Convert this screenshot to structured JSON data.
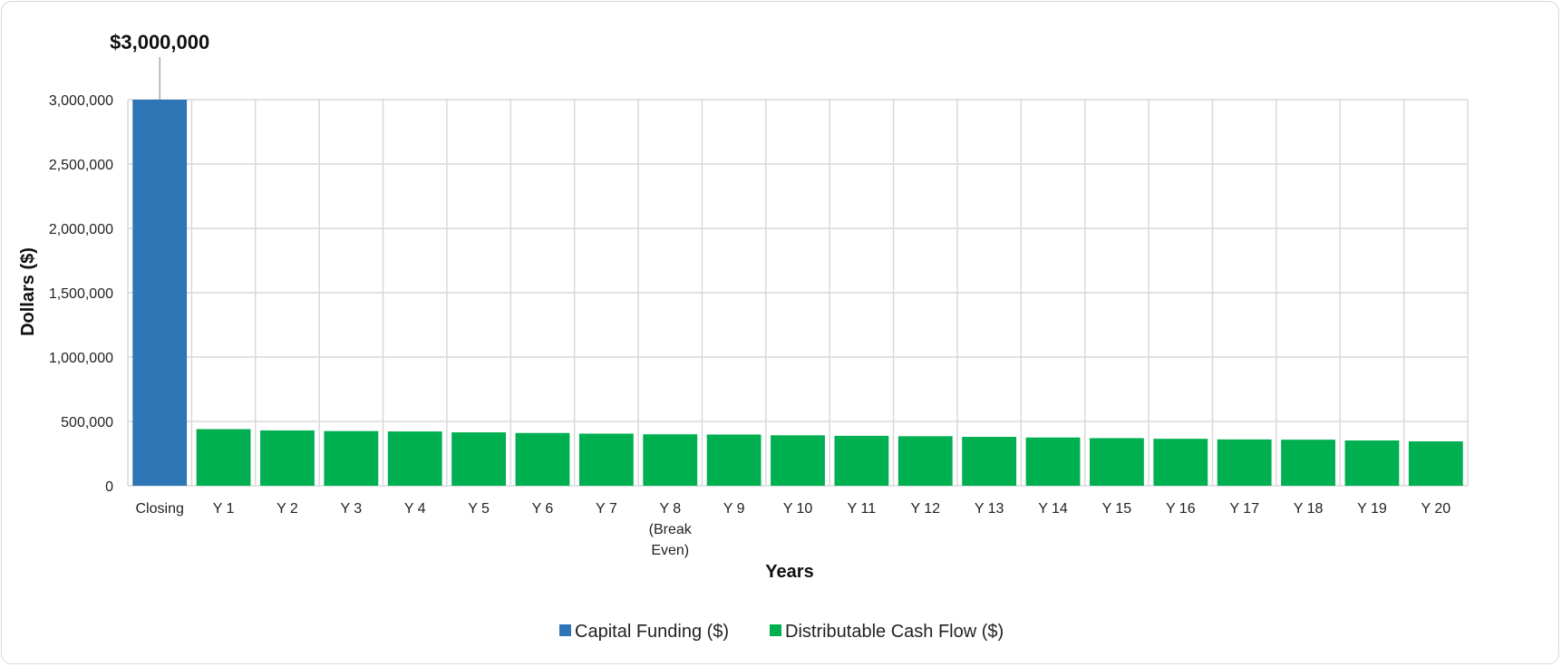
{
  "chart_data": {
    "type": "bar",
    "categories": [
      "Closing",
      "Y 1",
      "Y 2",
      "Y 3",
      "Y 4",
      "Y 5",
      "Y 6",
      "Y 7",
      "Y 8\n(Break\nEven)",
      "Y 9",
      "Y 10",
      "Y 11",
      "Y 12",
      "Y 13",
      "Y 14",
      "Y 15",
      "Y 16",
      "Y 17",
      "Y 18",
      "Y 19",
      "Y 20"
    ],
    "series": [
      {
        "name": "Capital Funding ($)",
        "color": "#2E75B6",
        "values": [
          3000000,
          null,
          null,
          null,
          null,
          null,
          null,
          null,
          null,
          null,
          null,
          null,
          null,
          null,
          null,
          null,
          null,
          null,
          null,
          null,
          null
        ]
      },
      {
        "name": "Distributable Cash Flow ($)",
        "color": "#00B050",
        "values": [
          null,
          440000,
          430000,
          425000,
          422000,
          415000,
          410000,
          405000,
          400000,
          398000,
          392000,
          388000,
          385000,
          380000,
          375000,
          370000,
          365000,
          360000,
          358000,
          352000,
          345000
        ]
      }
    ],
    "annotation": {
      "text": "$3,000,000",
      "category_index": 0
    },
    "xlabel": "Years",
    "ylabel": "Dollars ($)",
    "ylim": [
      0,
      3000000
    ],
    "yticks": [
      "0",
      "500,000",
      "1,000,000",
      "1,500,000",
      "2,000,000",
      "2,500,000",
      "3,000,000"
    ],
    "ytick_values": [
      0,
      500000,
      1000000,
      1500000,
      2000000,
      2500000,
      3000000
    ],
    "grid": true,
    "legend_position": "bottom"
  }
}
